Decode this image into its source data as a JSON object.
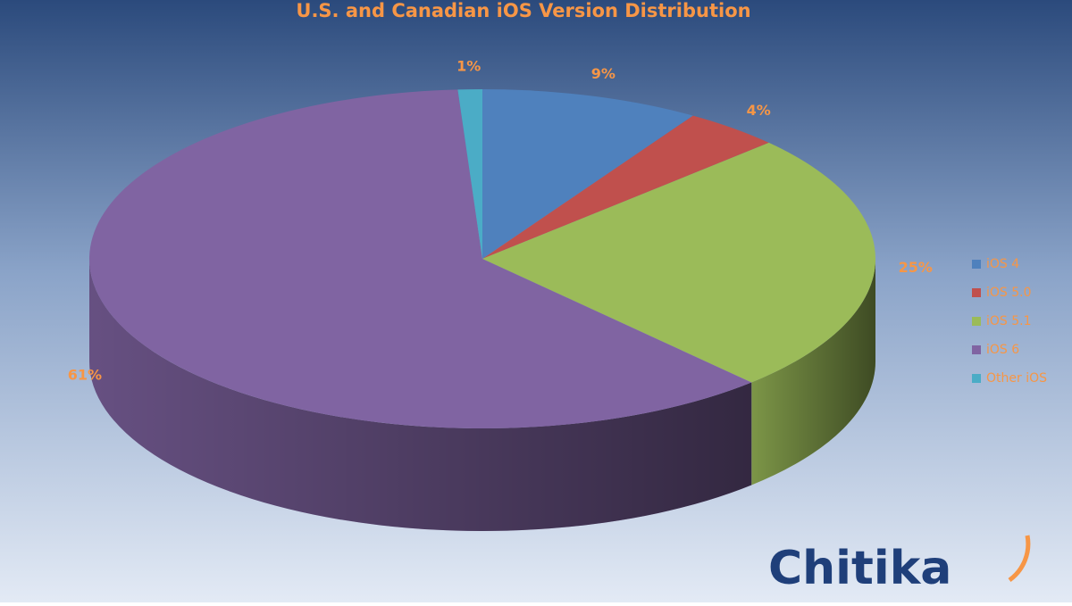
{
  "chart_data": {
    "type": "pie",
    "title": "U.S. and Canadian iOS Version Distribution",
    "categories": [
      "iOS 4",
      "iOS 5.0",
      "iOS 5.1",
      "iOS 6",
      "Other iOS"
    ],
    "values": [
      9,
      4,
      25,
      61,
      1
    ],
    "value_labels": [
      "9%",
      "4%",
      "25%",
      "61%",
      "1%"
    ],
    "colors": [
      "#4f81bd",
      "#c0504d",
      "#9bbb59",
      "#8064a2",
      "#4bacc6"
    ],
    "legend": "right",
    "watermark": "Chitika"
  }
}
